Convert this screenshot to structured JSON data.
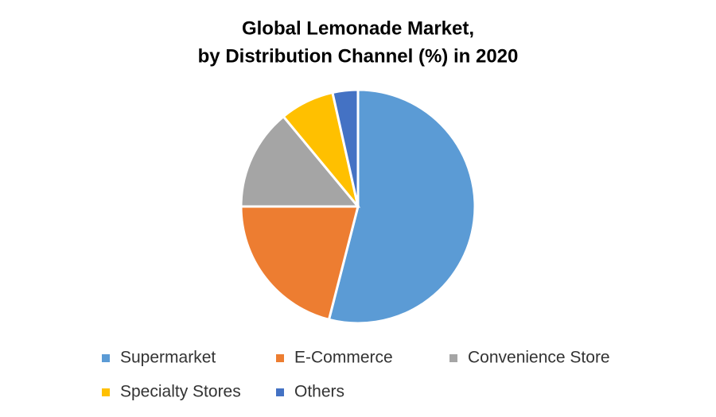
{
  "chart_data": {
    "type": "pie",
    "title": [
      "Global Lemonade Market,",
      "by Distribution Channel (%) in 2020"
    ],
    "categories": [
      "Supermarket",
      "E-Commerce",
      "Convenience Store",
      "Specialty Stores",
      "Others"
    ],
    "values": [
      54,
      21,
      14,
      7.5,
      3.5
    ],
    "colors": [
      "#5b9bd5",
      "#ed7d31",
      "#a5a5a5",
      "#ffc000",
      "#4472c4"
    ],
    "legend": "bottom"
  }
}
